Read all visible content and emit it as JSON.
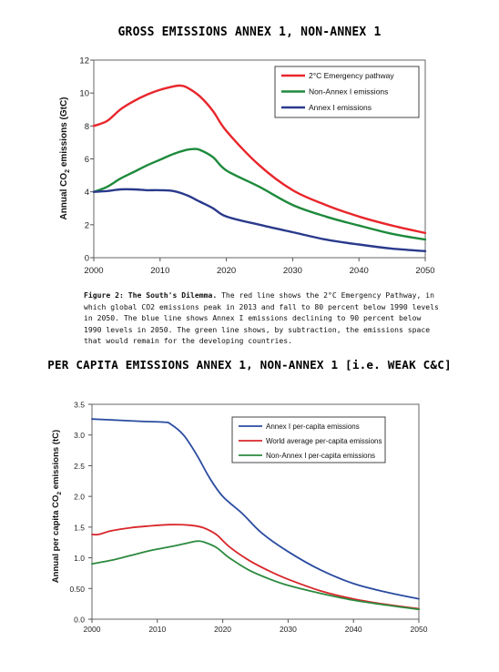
{
  "heading1": "GROSS EMISSIONS ANNEX 1, NON-ANNEX 1",
  "caption": {
    "label": "Figure 2: The South's Dilemma.",
    "text": "The red line shows the 2°C Emergency Pathway, in which global CO2 emissions peak in 2013 and fall to 80 percent below 1990 levels in 2050. The blue line shows Annex I emissions declining to 90 percent below 1990 levels in 2050. The green line shows, by subtraction, the emissions space that would remain for the developing countries."
  },
  "heading2": "PER CAPITA EMISSIONS ANNEX 1, NON-ANNEX 1 [i.e. WEAK C&C]",
  "chart_data": [
    {
      "type": "line",
      "ylabel": "Annual CO2 emissions (GtC)",
      "xlim": [
        2000,
        2050
      ],
      "ylim": [
        0,
        12
      ],
      "xticks": [
        2000,
        2010,
        2020,
        2030,
        2040,
        2050
      ],
      "yticks": [
        0,
        2,
        4,
        6,
        8,
        10,
        12
      ],
      "legend_position": "top-right",
      "series": [
        {
          "name": "2°C Emergency pathway",
          "color": "#e8262b",
          "x": [
            2000,
            2002,
            2004,
            2006,
            2008,
            2010,
            2012,
            2013,
            2014,
            2016,
            2018,
            2020,
            2025,
            2030,
            2035,
            2040,
            2045,
            2050
          ],
          "y": [
            8.0,
            8.3,
            9.0,
            9.5,
            9.9,
            10.2,
            10.4,
            10.45,
            10.35,
            9.8,
            8.9,
            7.7,
            5.6,
            4.1,
            3.2,
            2.5,
            1.95,
            1.5
          ]
        },
        {
          "name": "Non-Annex I emissions",
          "color": "#1e8a3c",
          "x": [
            2000,
            2002,
            2004,
            2006,
            2008,
            2010,
            2012,
            2014,
            2015,
            2016,
            2018,
            2020,
            2025,
            2030,
            2035,
            2040,
            2045,
            2050
          ],
          "y": [
            4.0,
            4.3,
            4.8,
            5.2,
            5.6,
            5.95,
            6.3,
            6.55,
            6.6,
            6.55,
            6.1,
            5.3,
            4.3,
            3.2,
            2.5,
            1.95,
            1.45,
            1.1
          ]
        },
        {
          "name": "Annex I emissions",
          "color": "#2a3a8c",
          "x": [
            2000,
            2002,
            2004,
            2006,
            2008,
            2010,
            2012,
            2014,
            2016,
            2018,
            2020,
            2025,
            2030,
            2035,
            2040,
            2045,
            2050
          ],
          "y": [
            4.0,
            4.05,
            4.15,
            4.15,
            4.1,
            4.1,
            4.05,
            3.8,
            3.4,
            3.0,
            2.5,
            2.0,
            1.55,
            1.1,
            0.8,
            0.55,
            0.4
          ]
        }
      ]
    },
    {
      "type": "line",
      "ylabel": "Annual per capita CO2 emissions (tC)",
      "xlim": [
        2000,
        2050
      ],
      "ylim": [
        0,
        3.5
      ],
      "xticks": [
        2000,
        2010,
        2020,
        2030,
        2040,
        2050
      ],
      "yticks": [
        0.0,
        0.5,
        1.0,
        1.5,
        2.0,
        2.5,
        3.0,
        3.5
      ],
      "ytick_labels": [
        "0.0",
        "0.50",
        "1.0",
        "1.5",
        "2.0",
        "2.5",
        "3.0",
        "3.5"
      ],
      "legend_position": "top-right",
      "series": [
        {
          "name": "Annex I per-capita emissions",
          "color": "#2a4ba0",
          "x": [
            2000,
            2004,
            2008,
            2011,
            2012,
            2014,
            2016,
            2018,
            2020,
            2023,
            2026,
            2030,
            2035,
            2040,
            2045,
            2050
          ],
          "y": [
            3.26,
            3.24,
            3.22,
            3.21,
            3.18,
            3.0,
            2.68,
            2.3,
            2.0,
            1.72,
            1.4,
            1.1,
            0.8,
            0.58,
            0.44,
            0.33
          ]
        },
        {
          "name": "World average per-capita emissions",
          "color": "#d8262b",
          "x": [
            2000,
            2001,
            2003,
            2006,
            2009,
            2012,
            2015,
            2017,
            2019,
            2021,
            2024,
            2027,
            2030,
            2035,
            2040,
            2045,
            2050
          ],
          "y": [
            1.38,
            1.38,
            1.44,
            1.49,
            1.52,
            1.54,
            1.53,
            1.49,
            1.38,
            1.18,
            0.96,
            0.79,
            0.65,
            0.46,
            0.33,
            0.24,
            0.17
          ]
        },
        {
          "name": "Non-Annex I per-capita emissions",
          "color": "#2b8a3e",
          "x": [
            2000,
            2003,
            2006,
            2009,
            2012,
            2015,
            2016,
            2017,
            2019,
            2021,
            2024,
            2027,
            2030,
            2035,
            2040,
            2045,
            2050
          ],
          "y": [
            0.9,
            0.96,
            1.04,
            1.12,
            1.18,
            1.25,
            1.27,
            1.26,
            1.17,
            1.0,
            0.8,
            0.66,
            0.55,
            0.42,
            0.31,
            0.23,
            0.16
          ]
        }
      ]
    }
  ]
}
